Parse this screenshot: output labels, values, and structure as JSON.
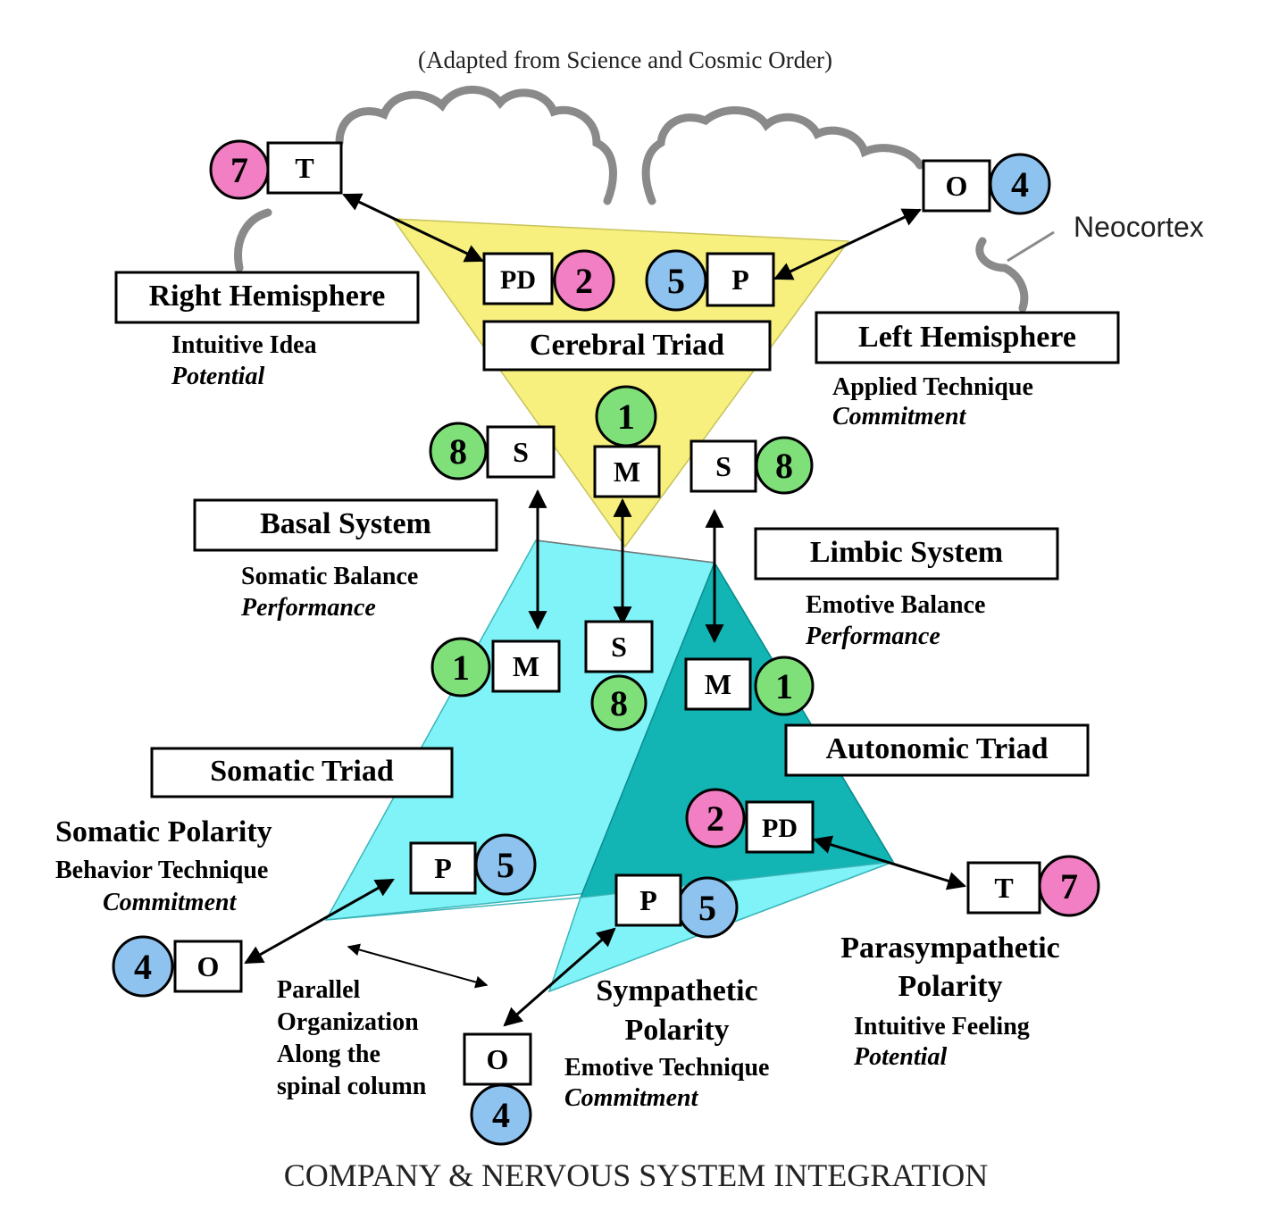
{
  "header": {
    "subtitle": "(Adapted from Science and Cosmic Order)",
    "footer_title": "COMPANY & NERVOUS SYSTEM INTEGRATION"
  },
  "colors": {
    "pink": "#f27ec4",
    "blue": "#8ec3f0",
    "green": "#7fe07a",
    "yellow": "#f7f07e",
    "cyan": "#7ff3f7",
    "teal": "#12b4b4",
    "cloud": "#8a8a8a"
  },
  "regions": {
    "neocortex": "Neocortex",
    "right_hemisphere": {
      "title": "Right Hemisphere",
      "line1": "Intuitive Idea",
      "line2": "Potential"
    },
    "left_hemisphere": {
      "title": "Left Hemisphere",
      "line1": "Applied Technique",
      "line2": "Commitment"
    },
    "cerebral_triad": "Cerebral Triad",
    "basal_system": {
      "title": "Basal System",
      "line1": "Somatic Balance",
      "line2": "Performance"
    },
    "limbic_system": {
      "title": "Limbic System",
      "line1": "Emotive Balance",
      "line2": "Performance"
    },
    "somatic_triad": "Somatic Triad",
    "autonomic_triad": "Autonomic Triad",
    "somatic_polarity": {
      "title": "Somatic Polarity",
      "line1": "Behavior Technique",
      "line2": "Commitment"
    },
    "parallel_org": {
      "line1": "Parallel",
      "line2": "Organization",
      "line3": "Along the",
      "line4": "spinal column"
    },
    "sympathetic_polarity": {
      "line1": "Sympathetic",
      "line2": "Polarity",
      "line3": "Emotive Technique",
      "line4": "Commitment"
    },
    "parasympathetic_polarity": {
      "line1": "Parasympathetic",
      "line2": "Polarity",
      "line3": "Intuitive Feeling",
      "line4": "Potential"
    }
  },
  "nodes": {
    "t_top": {
      "letter": "T",
      "number": "7",
      "color": "pink"
    },
    "o_top": {
      "letter": "O",
      "number": "4",
      "color": "blue"
    },
    "pd_top": {
      "letter": "PD",
      "number": "2",
      "color": "pink"
    },
    "p_top": {
      "letter": "P",
      "number": "5",
      "color": "blue"
    },
    "m_top": {
      "letter": "M",
      "number": "1",
      "color": "green"
    },
    "s_left": {
      "letter": "S",
      "number": "8",
      "color": "green"
    },
    "s_right": {
      "letter": "S",
      "number": "8",
      "color": "green"
    },
    "m_left": {
      "letter": "M",
      "number": "1",
      "color": "green"
    },
    "s_mid": {
      "letter": "S",
      "number": "8",
      "color": "green"
    },
    "m_right": {
      "letter": "M",
      "number": "1",
      "color": "green"
    },
    "pd_bottom": {
      "letter": "PD",
      "number": "2",
      "color": "pink"
    },
    "t_bottom": {
      "letter": "T",
      "number": "7",
      "color": "pink"
    },
    "p_somatic": {
      "letter": "P",
      "number": "5",
      "color": "blue"
    },
    "o_somatic": {
      "letter": "O",
      "number": "4",
      "color": "blue"
    },
    "p_symp": {
      "letter": "P",
      "number": "5",
      "color": "blue"
    },
    "o_symp": {
      "letter": "O",
      "number": "4",
      "color": "blue"
    }
  }
}
